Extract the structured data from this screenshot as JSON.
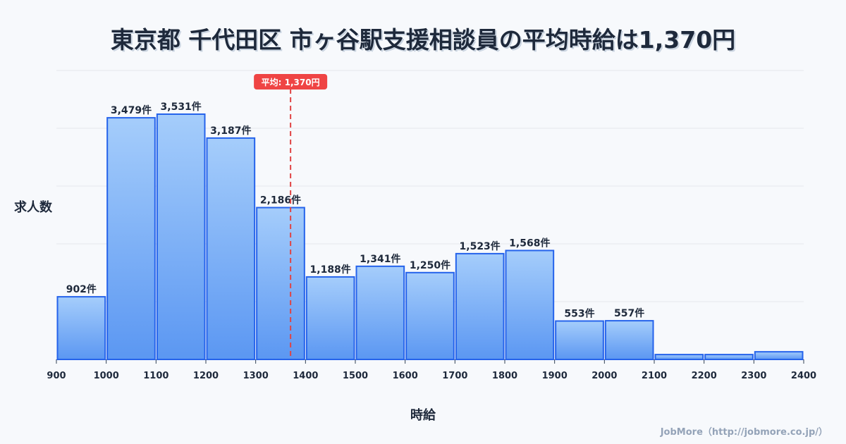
{
  "title": "東京都 千代田区 市ヶ谷駅支援相談員の平均時給は1,370円",
  "credit": "JobMore（http://jobmore.co.jp/）",
  "colors": {
    "bar_top": "#a5cdfb",
    "bar_bottom": "#5b97f2",
    "bar_stroke": "#2563eb",
    "mean_line": "#e04444",
    "mean_badge": "#ef4444"
  },
  "chart_data": {
    "type": "bar",
    "title": "東京都 千代田区 市ヶ谷駅支援相談員の平均時給は1,370円",
    "xlabel": "時給",
    "ylabel": "求人数",
    "bin_edges": [
      900,
      1000,
      1100,
      1200,
      1300,
      1400,
      1500,
      1600,
      1700,
      1800,
      1900,
      2000,
      2100,
      2200,
      2300,
      2400
    ],
    "x_tick_labels": [
      "900",
      "1000",
      "1100",
      "1200",
      "1300",
      "1400",
      "1500",
      "1600",
      "1700",
      "1800",
      "1900",
      "2000",
      "2100",
      "2200",
      "2300",
      "2400"
    ],
    "values": [
      902,
      3479,
      3531,
      3187,
      2186,
      1188,
      1341,
      1250,
      1523,
      1568,
      553,
      557,
      70,
      70,
      110
    ],
    "data_labels": [
      "902件",
      "3,479件",
      "3,531件",
      "3,187件",
      "2,186件",
      "1,188件",
      "1,341件",
      "1,250件",
      "1,523件",
      "1,568件",
      "553件",
      "557件",
      "",
      "",
      ""
    ],
    "ylim": [
      0,
      4160
    ],
    "grid": true,
    "mean": 1370,
    "mean_label": "平均: 1,370円"
  }
}
